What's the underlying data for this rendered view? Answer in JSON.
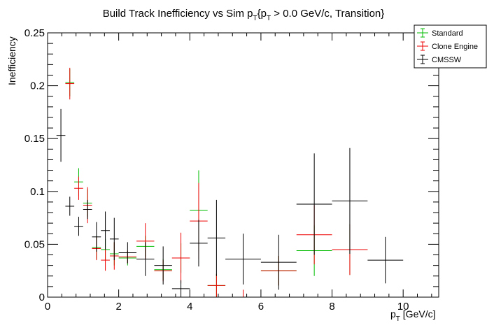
{
  "chart_data": {
    "type": "scatter",
    "title": "Build Track Inefficiency vs Sim p",
    "title_sub1": "T",
    "title_mid": "{p",
    "title_sub2": "T",
    "title_end": " > 0.0 GeV/c, Transition}",
    "xlabel": "p",
    "xlabel_sub": "T",
    "xlabel_unit": " [GeV/c]",
    "ylabel": "Inefficiency",
    "xlim": [
      0,
      11
    ],
    "ylim": [
      0,
      0.25
    ],
    "x_ticks": [
      0,
      2,
      4,
      6,
      8,
      10
    ],
    "x_tick_labels": [
      "0",
      "2",
      "4",
      "6",
      "8",
      "10"
    ],
    "y_ticks": [
      0,
      0.05,
      0.1,
      0.15,
      0.2,
      0.25
    ],
    "y_tick_labels": [
      "0",
      "0.05",
      "0.1",
      "0.15",
      "0.2",
      "0.25"
    ],
    "legend_position": "top-right",
    "series": [
      {
        "name": "Standard",
        "color": "#00bb00",
        "points": [
          {
            "x": 0.625,
            "xerr": 0.125,
            "y": 0.203,
            "yerr": 0.013
          },
          {
            "x": 0.875,
            "xerr": 0.125,
            "y": 0.109,
            "yerr": 0.013
          },
          {
            "x": 1.125,
            "xerr": 0.125,
            "y": 0.089,
            "yerr": 0.013
          },
          {
            "x": 1.375,
            "xerr": 0.125,
            "y": 0.047,
            "yerr": 0.011
          },
          {
            "x": 1.625,
            "xerr": 0.125,
            "y": 0.045,
            "yerr": 0.01
          },
          {
            "x": 1.875,
            "xerr": 0.125,
            "y": 0.041,
            "yerr": 0.011
          },
          {
            "x": 2.25,
            "xerr": 0.25,
            "y": 0.037,
            "yerr": 0.007
          },
          {
            "x": 2.75,
            "xerr": 0.25,
            "y": 0.048,
            "yerr": 0.01
          },
          {
            "x": 3.25,
            "xerr": 0.25,
            "y": 0.026,
            "yerr": 0.01
          },
          {
            "x": 3.75,
            "xerr": 0.25,
            "y": 0.037,
            "yerr": 0.014
          },
          {
            "x": 4.25,
            "xerr": 0.25,
            "y": 0.082,
            "yerr": 0.038
          },
          {
            "x": 4.75,
            "xerr": 0.25,
            "y": 0.011,
            "yerr": 0.011
          },
          {
            "x": 6.5,
            "xerr": 0.5,
            "y": 0.025,
            "yerr": 0.014
          },
          {
            "x": 7.5,
            "xerr": 0.5,
            "y": 0.044,
            "yerr": 0.024
          },
          {
            "x": 8.5,
            "xerr": 0.5,
            "y": 0.045,
            "yerr": 0.024
          }
        ]
      },
      {
        "name": "Clone Engine",
        "color": "#ee0000",
        "points": [
          {
            "x": 0.625,
            "xerr": 0.125,
            "y": 0.202,
            "yerr": 0.015
          },
          {
            "x": 0.875,
            "xerr": 0.125,
            "y": 0.103,
            "yerr": 0.011
          },
          {
            "x": 1.125,
            "xerr": 0.125,
            "y": 0.087,
            "yerr": 0.017
          },
          {
            "x": 1.375,
            "xerr": 0.125,
            "y": 0.046,
            "yerr": 0.011
          },
          {
            "x": 1.625,
            "xerr": 0.125,
            "y": 0.035,
            "yerr": 0.01
          },
          {
            "x": 1.875,
            "xerr": 0.125,
            "y": 0.039,
            "yerr": 0.013
          },
          {
            "x": 2.25,
            "xerr": 0.25,
            "y": 0.038,
            "yerr": 0.006
          },
          {
            "x": 2.75,
            "xerr": 0.25,
            "y": 0.053,
            "yerr": 0.017
          },
          {
            "x": 3.25,
            "xerr": 0.25,
            "y": 0.025,
            "yerr": 0.01
          },
          {
            "x": 3.75,
            "xerr": 0.25,
            "y": 0.037,
            "yerr": 0.024
          },
          {
            "x": 4.25,
            "xerr": 0.25,
            "y": 0.072,
            "yerr": 0.036
          },
          {
            "x": 4.75,
            "xerr": 0.25,
            "y": 0.011,
            "yerr": 0.011
          },
          {
            "x": 5.5,
            "xerr": 0.5,
            "y": 0.0,
            "yerr": 0.007
          },
          {
            "x": 6.5,
            "xerr": 0.5,
            "y": 0.025,
            "yerr": 0.014
          },
          {
            "x": 7.5,
            "xerr": 0.5,
            "y": 0.059,
            "yerr": 0.028
          },
          {
            "x": 8.5,
            "xerr": 0.5,
            "y": 0.045,
            "yerr": 0.024
          }
        ]
      },
      {
        "name": "CMSSW",
        "color": "#000000",
        "points": [
          {
            "x": 0.375,
            "xerr": 0.125,
            "y": 0.153,
            "yerr": 0.025
          },
          {
            "x": 0.625,
            "xerr": 0.125,
            "y": 0.086,
            "yerr": 0.009
          },
          {
            "x": 0.875,
            "xerr": 0.125,
            "y": 0.067,
            "yerr": 0.009
          },
          {
            "x": 1.125,
            "xerr": 0.125,
            "y": 0.083,
            "yerr": 0.009
          },
          {
            "x": 1.375,
            "xerr": 0.125,
            "y": 0.057,
            "yerr": 0.014
          },
          {
            "x": 1.625,
            "xerr": 0.125,
            "y": 0.063,
            "yerr": 0.018
          },
          {
            "x": 1.875,
            "xerr": 0.125,
            "y": 0.055,
            "yerr": 0.02
          },
          {
            "x": 2.25,
            "xerr": 0.25,
            "y": 0.042,
            "yerr": 0.01
          },
          {
            "x": 2.75,
            "xerr": 0.25,
            "y": 0.036,
            "yerr": 0.016
          },
          {
            "x": 3.25,
            "xerr": 0.25,
            "y": 0.03,
            "yerr": 0.018
          },
          {
            "x": 3.75,
            "xerr": 0.25,
            "y": 0.008,
            "yerr": 0.008
          },
          {
            "x": 4.25,
            "xerr": 0.25,
            "y": 0.051,
            "yerr": 0.022
          },
          {
            "x": 4.75,
            "xerr": 0.25,
            "y": 0.056,
            "yerr": 0.036
          },
          {
            "x": 5.5,
            "xerr": 0.5,
            "y": 0.036,
            "yerr": 0.024
          },
          {
            "x": 6.5,
            "xerr": 0.5,
            "y": 0.033,
            "yerr": 0.026
          },
          {
            "x": 7.5,
            "xerr": 0.5,
            "y": 0.088,
            "yerr": 0.048
          },
          {
            "x": 8.5,
            "xerr": 0.5,
            "y": 0.091,
            "yerr": 0.05
          },
          {
            "x": 9.5,
            "xerr": 0.5,
            "y": 0.035,
            "yerr": 0.022
          }
        ]
      }
    ]
  }
}
